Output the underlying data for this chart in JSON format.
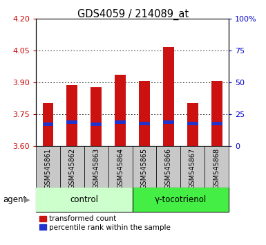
{
  "title": "GDS4059 / 214089_at",
  "samples": [
    "GSM545861",
    "GSM545862",
    "GSM545863",
    "GSM545864",
    "GSM545865",
    "GSM545866",
    "GSM545867",
    "GSM545868"
  ],
  "bar_heights": [
    3.8,
    3.885,
    3.875,
    3.935,
    3.905,
    4.065,
    3.8,
    3.905
  ],
  "blue_positions": [
    3.693,
    3.703,
    3.693,
    3.703,
    3.698,
    3.703,
    3.698,
    3.698
  ],
  "blue_heights": [
    0.015,
    0.015,
    0.015,
    0.015,
    0.015,
    0.015,
    0.015,
    0.015
  ],
  "y_min": 3.6,
  "y_max": 4.2,
  "y_ticks_left": [
    3.6,
    3.75,
    3.9,
    4.05,
    4.2
  ],
  "y_ticks_right": [
    0,
    25,
    50,
    75,
    100
  ],
  "bar_color": "#cc1111",
  "blue_color": "#2233cc",
  "control_bg": "#ccffcc",
  "treatment_bg": "#44ee44",
  "ticklabel_gray": "#c8c8c8",
  "left_tick_color": "#cc0000",
  "right_tick_color": "#0000cc",
  "bar_width": 0.45,
  "tick_label_fontsize": 7.0,
  "title_fontsize": 10.5,
  "legend_fontsize": 7.5,
  "group_fontsize": 8.5,
  "legend_red_label": "transformed count",
  "legend_blue_label": "percentile rank within the sample"
}
